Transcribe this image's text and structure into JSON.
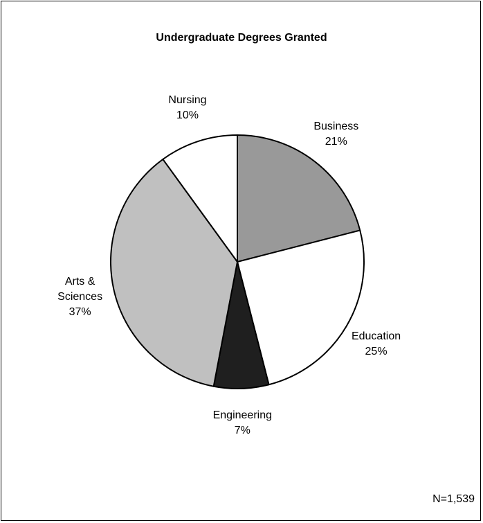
{
  "chart_data": {
    "type": "pie",
    "title": "Undergraduate Degrees Granted",
    "categories": [
      "Business",
      "Education",
      "Engineering",
      "Arts & Sciences",
      "Nursing"
    ],
    "values": [
      21,
      25,
      7,
      37,
      10
    ],
    "value_labels": [
      "21%",
      "25%",
      "7%",
      "37%",
      "10%"
    ],
    "colors": [
      "#999999",
      "#ffffff",
      "#1f1f1f",
      "#c0c0c0",
      "#ffffff"
    ],
    "annotation": "N=1,539"
  }
}
